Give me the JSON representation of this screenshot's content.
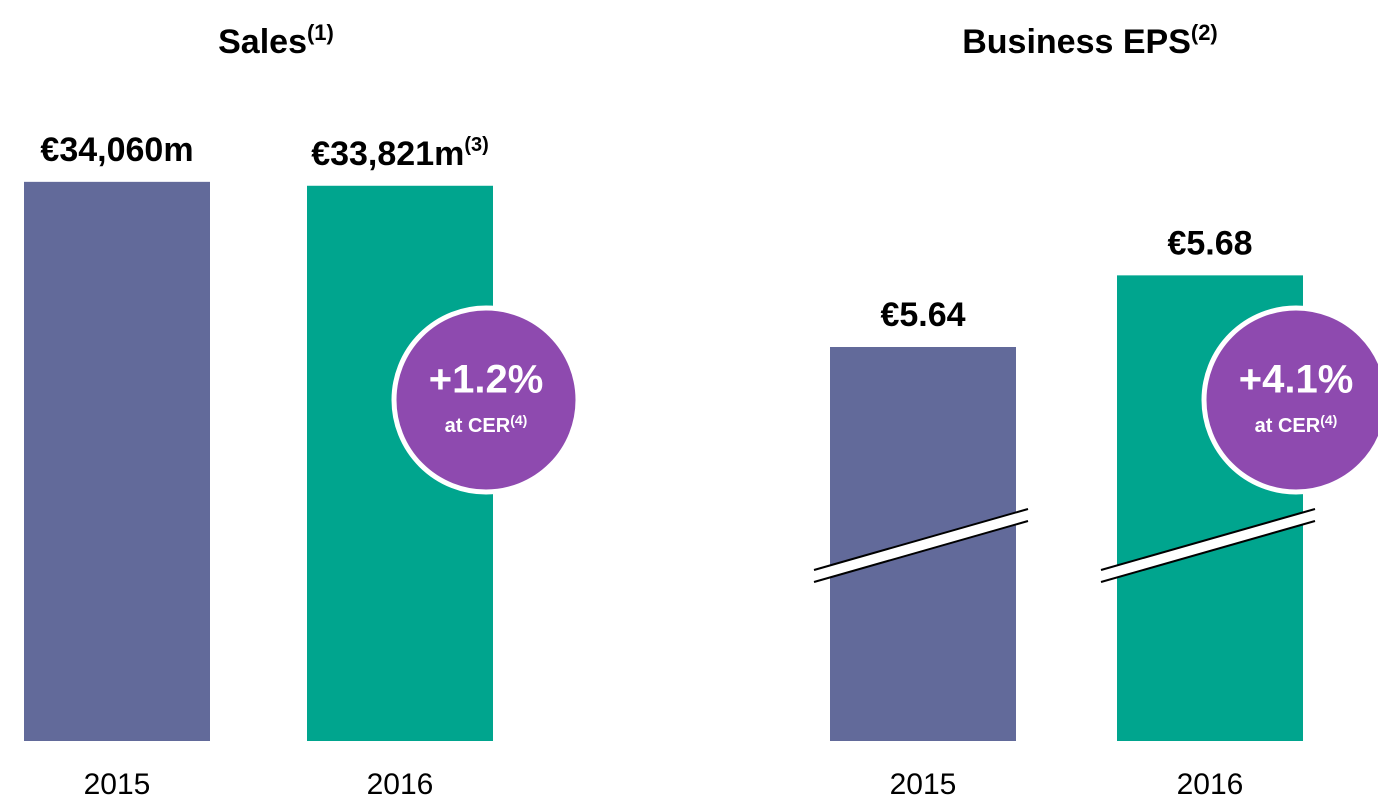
{
  "chart_data": [
    {
      "type": "bar",
      "title": "Sales",
      "title_note": "(1)",
      "categories": [
        "2015",
        "2016"
      ],
      "values": [
        34060,
        33821
      ],
      "value_labels": [
        "€34,060m",
        "€33,821m"
      ],
      "value_label_notes": [
        null,
        "(3)"
      ],
      "colors": [
        "#626a9a",
        "#00a58e"
      ],
      "ylim": [
        0,
        36000
      ],
      "badge": {
        "text": "+1.2%",
        "label": "at CER",
        "note": "(4)",
        "color": "#8e4aaf"
      }
    },
    {
      "type": "bar",
      "title": "Business EPS",
      "title_note": "(2)",
      "categories": [
        "2015",
        "2016"
      ],
      "values": [
        5.64,
        5.68
      ],
      "value_labels": [
        "€5.64",
        "€5.68"
      ],
      "value_label_notes": [
        null,
        null
      ],
      "colors": [
        "#626a9a",
        "#00a58e"
      ],
      "ylim": [
        5.42,
        5.75
      ],
      "axis_break": true,
      "badge": {
        "text": "+4.1%",
        "label": "at CER",
        "note": "(4)",
        "color": "#8e4aaf"
      }
    }
  ]
}
